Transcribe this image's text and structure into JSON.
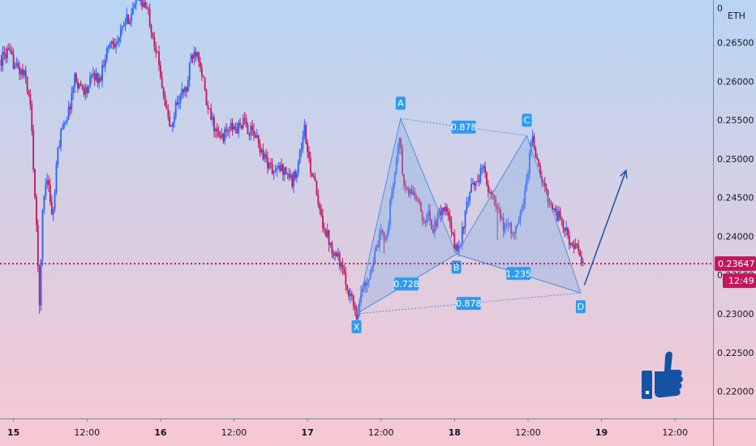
{
  "chart_data": {
    "type": "candlestick",
    "symbol_currency": "ETH",
    "y_axis": {
      "ticks": [
        "0.26500",
        "0.26000",
        "0.25500",
        "0.25000",
        "0.24500",
        "0.24000",
        "0.23500",
        "0.23000",
        "0.22500",
        "0.22000"
      ],
      "tick_values": [
        0.265,
        0.26,
        0.255,
        0.25,
        0.245,
        0.24,
        0.235,
        0.23,
        0.225,
        0.22
      ],
      "ylim": [
        0.2165,
        0.2705
      ]
    },
    "x_axis": {
      "ticks": [
        "15",
        "12:00",
        "16",
        "12:00",
        "17",
        "12:00",
        "18",
        "12:00",
        "19",
        "12:00"
      ],
      "tick_values": [
        0,
        12,
        24,
        36,
        48,
        60,
        72,
        84,
        96,
        108
      ],
      "xlim": [
        -2.2,
        114.2
      ],
      "bold_ticks": [
        "15",
        "16",
        "17",
        "18",
        "19"
      ]
    },
    "last_price": {
      "value": 0.23647,
      "label": "0.23647",
      "countdown": "12:49"
    },
    "candles": {
      "style": "dense intraday candles",
      "up_color": "#2962ff",
      "down_color": "#c2185b",
      "key_points": [
        [
          -2.0,
          0.2628
        ],
        [
          -1.0,
          0.2638
        ],
        [
          0.5,
          0.2618
        ],
        [
          2.0,
          0.2605
        ],
        [
          2.8,
          0.2565
        ],
        [
          3.6,
          0.2435
        ],
        [
          4.0,
          0.236
        ],
        [
          4.3,
          0.231
        ],
        [
          4.8,
          0.2445
        ],
        [
          5.5,
          0.248
        ],
        [
          6.4,
          0.242
        ],
        [
          7.2,
          0.2508
        ],
        [
          8.0,
          0.2545
        ],
        [
          9.0,
          0.256
        ],
        [
          10.0,
          0.2605
        ],
        [
          11.0,
          0.2592
        ],
        [
          12.0,
          0.2588
        ],
        [
          13.0,
          0.261
        ],
        [
          14.0,
          0.26
        ],
        [
          15.0,
          0.2635
        ],
        [
          16.0,
          0.2653
        ],
        [
          17.0,
          0.265
        ],
        [
          18.0,
          0.2672
        ],
        [
          19.0,
          0.2685
        ],
        [
          20.0,
          0.2698
        ],
        [
          20.6,
          0.2708
        ],
        [
          21.2,
          0.27
        ],
        [
          22.0,
          0.2688
        ],
        [
          23.0,
          0.2652
        ],
        [
          24.0,
          0.261
        ],
        [
          25.0,
          0.256
        ],
        [
          25.8,
          0.2535
        ],
        [
          26.5,
          0.257
        ],
        [
          27.5,
          0.2585
        ],
        [
          28.3,
          0.259
        ],
        [
          29.0,
          0.2632
        ],
        [
          30.0,
          0.2642
        ],
        [
          30.8,
          0.2612
        ],
        [
          31.5,
          0.2568
        ],
        [
          32.5,
          0.2548
        ],
        [
          33.5,
          0.2525
        ],
        [
          34.5,
          0.2532
        ],
        [
          35.5,
          0.254
        ],
        [
          36.5,
          0.2538
        ],
        [
          37.5,
          0.2548
        ],
        [
          38.5,
          0.2536
        ],
        [
          39.5,
          0.253
        ],
        [
          40.5,
          0.251
        ],
        [
          41.5,
          0.2495
        ],
        [
          42.5,
          0.2482
        ],
        [
          43.5,
          0.2488
        ],
        [
          44.5,
          0.2485
        ],
        [
          45.5,
          0.247
        ],
        [
          46.5,
          0.2495
        ],
        [
          47.5,
          0.254
        ],
        [
          48.2,
          0.2495
        ],
        [
          49.0,
          0.2478
        ],
        [
          49.8,
          0.2435
        ],
        [
          50.5,
          0.2418
        ],
        [
          51.2,
          0.2402
        ],
        [
          52.0,
          0.2385
        ],
        [
          53.0,
          0.2375
        ],
        [
          54.0,
          0.2345
        ],
        [
          55.0,
          0.2325
        ],
        [
          56.0,
          0.23
        ],
        [
          57.0,
          0.2332
        ],
        [
          58.0,
          0.235
        ],
        [
          59.0,
          0.2375
        ],
        [
          60.0,
          0.2402
        ],
        [
          61.0,
          0.2402
        ],
        [
          61.6,
          0.2448
        ],
        [
          62.4,
          0.249
        ],
        [
          63.0,
          0.2533
        ],
        [
          63.6,
          0.247
        ],
        [
          64.4,
          0.2455
        ],
        [
          65.2,
          0.2458
        ],
        [
          66.0,
          0.2445
        ],
        [
          66.8,
          0.242
        ],
        [
          67.6,
          0.243
        ],
        [
          68.4,
          0.241
        ],
        [
          69.2,
          0.242
        ],
        [
          70.0,
          0.2438
        ],
        [
          70.8,
          0.243
        ],
        [
          71.6,
          0.24
        ],
        [
          72.4,
          0.238
        ],
        [
          73.0,
          0.2395
        ],
        [
          73.8,
          0.243
        ],
        [
          74.6,
          0.2458
        ],
        [
          75.4,
          0.247
        ],
        [
          76.2,
          0.248
        ],
        [
          77.0,
          0.2488
        ],
        [
          77.6,
          0.2455
        ],
        [
          78.4,
          0.2445
        ],
        [
          79.2,
          0.243
        ],
        [
          80.0,
          0.241
        ],
        [
          80.8,
          0.242
        ],
        [
          81.6,
          0.24
        ],
        [
          82.4,
          0.2415
        ],
        [
          83.2,
          0.2445
        ],
        [
          84.0,
          0.2485
        ],
        [
          84.6,
          0.2532
        ],
        [
          85.2,
          0.251
        ],
        [
          86.0,
          0.2475
        ],
        [
          86.8,
          0.246
        ],
        [
          87.6,
          0.2445
        ],
        [
          88.4,
          0.243
        ],
        [
          89.2,
          0.2425
        ],
        [
          90.0,
          0.2408
        ],
        [
          90.8,
          0.2395
        ],
        [
          91.6,
          0.2385
        ],
        [
          92.2,
          0.238
        ],
        [
          93.0,
          0.2365
        ]
      ]
    },
    "pattern": {
      "name": "harmonic XABCD",
      "points": [
        {
          "label": "X",
          "t": 56.0,
          "price": 0.23
        },
        {
          "label": "A",
          "t": 63.2,
          "price": 0.2552
        },
        {
          "label": "B",
          "t": 72.3,
          "price": 0.2377
        },
        {
          "label": "C",
          "t": 83.8,
          "price": 0.253
        },
        {
          "label": "D",
          "t": 92.6,
          "price": 0.2327
        }
      ],
      "ratios": [
        {
          "label": "0.728",
          "from": "X",
          "to": "B"
        },
        {
          "label": "0.878",
          "from": "A",
          "to": "C"
        },
        {
          "label": "1.235",
          "from": "B",
          "to": "D"
        },
        {
          "label": "0.878",
          "from": "X",
          "to": "D"
        }
      ]
    },
    "projection_arrow": {
      "from": [
        93.2,
        0.2337
      ],
      "to": [
        100.0,
        0.2485
      ]
    },
    "thumbs_up_icon": "thumbs-up-icon",
    "colors": {
      "bg_top": "#b9d5f3",
      "bg_bottom": "#f7c8d3",
      "pattern_fill": "rgba(130,176,230,0.35)",
      "pattern_line": "#4e8fde",
      "marker_fill": "#2d9bf0",
      "price_line": "#c2185b",
      "arrow": "#1552a8",
      "thumb": "#1452a4"
    }
  }
}
